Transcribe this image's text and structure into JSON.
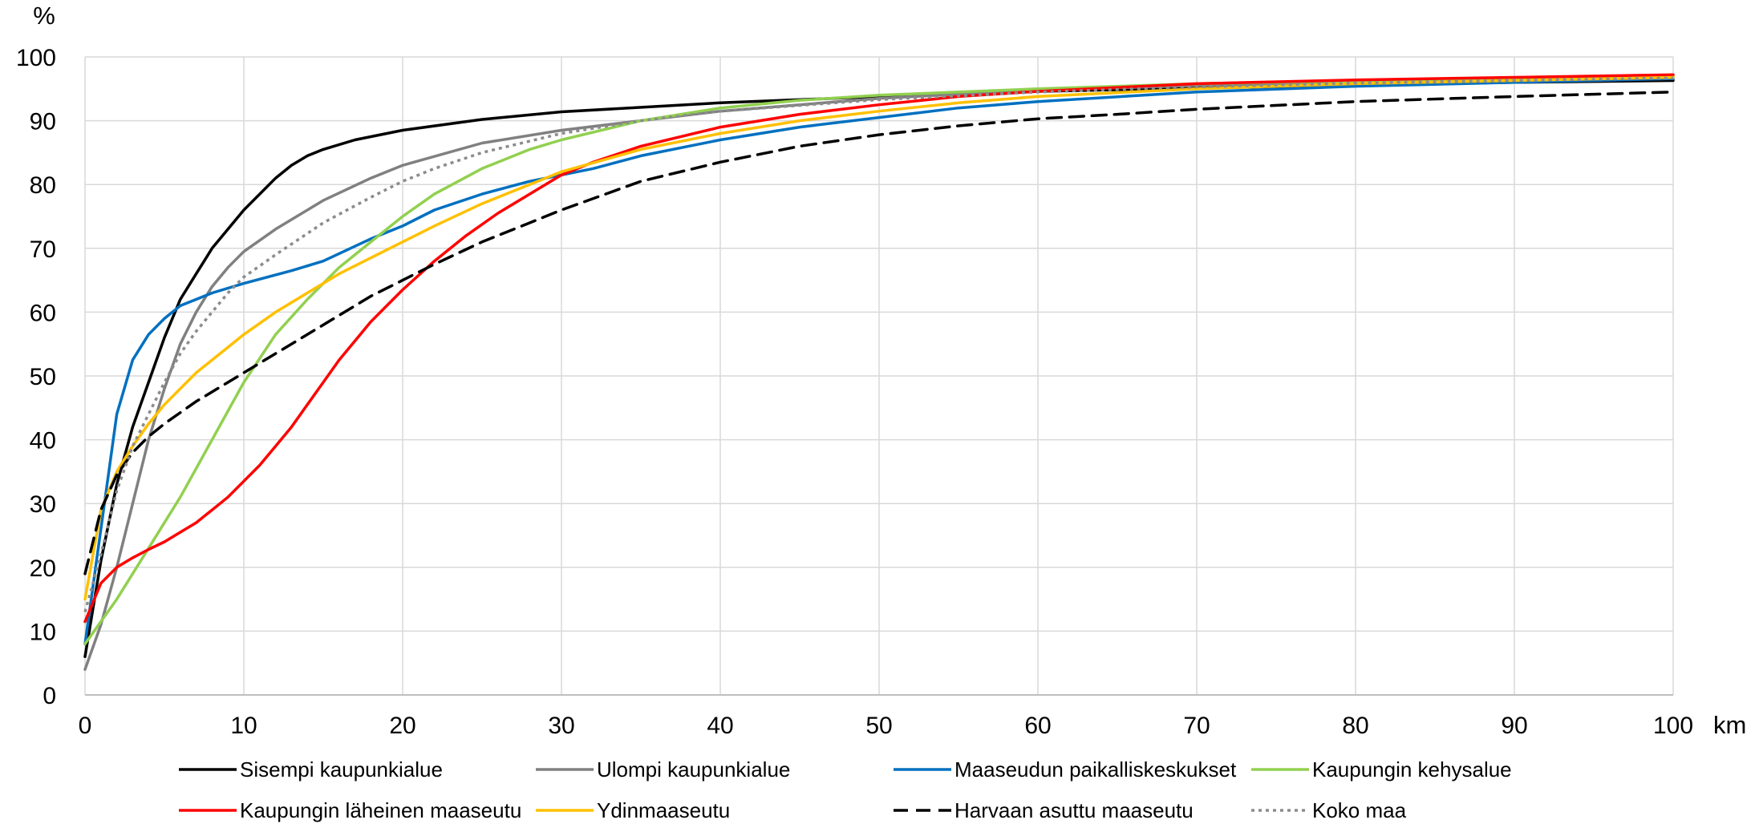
{
  "chart_data": {
    "type": "line",
    "title": "",
    "y_unit_label": "%",
    "x_unit_label": "km",
    "xlim": [
      0,
      100
    ],
    "ylim": [
      0,
      100
    ],
    "x_ticks": [
      0,
      10,
      20,
      30,
      40,
      50,
      60,
      70,
      80,
      90,
      100
    ],
    "y_ticks": [
      0,
      10,
      20,
      30,
      40,
      50,
      60,
      70,
      80,
      90,
      100
    ],
    "grid": true,
    "legend_position": "bottom",
    "series": [
      {
        "name": "Sisempi kaupunkialue",
        "color": "#000000",
        "style": "solid",
        "points": [
          [
            0,
            6
          ],
          [
            1,
            21
          ],
          [
            2,
            33
          ],
          [
            3,
            42
          ],
          [
            4,
            49
          ],
          [
            5,
            56
          ],
          [
            6,
            62
          ],
          [
            7,
            66
          ],
          [
            8,
            70
          ],
          [
            9,
            73
          ],
          [
            10,
            76
          ],
          [
            11,
            78.5
          ],
          [
            12,
            81
          ],
          [
            13,
            83
          ],
          [
            14,
            84.5
          ],
          [
            15,
            85.5
          ],
          [
            17,
            87
          ],
          [
            20,
            88.5
          ],
          [
            25,
            90.2
          ],
          [
            30,
            91.4
          ],
          [
            40,
            92.8
          ],
          [
            50,
            93.8
          ],
          [
            60,
            94.6
          ],
          [
            70,
            95.1
          ],
          [
            80,
            95.6
          ],
          [
            90,
            96
          ],
          [
            100,
            96.3
          ]
        ]
      },
      {
        "name": "Ulompi kaupunkialue",
        "color": "#808080",
        "style": "solid",
        "points": [
          [
            0,
            4
          ],
          [
            1,
            11
          ],
          [
            2,
            20
          ],
          [
            3,
            30
          ],
          [
            4,
            40
          ],
          [
            5,
            48
          ],
          [
            6,
            55
          ],
          [
            7,
            60
          ],
          [
            8,
            64
          ],
          [
            9,
            67
          ],
          [
            10,
            69.5
          ],
          [
            12,
            73
          ],
          [
            15,
            77.5
          ],
          [
            18,
            81
          ],
          [
            20,
            83
          ],
          [
            25,
            86.5
          ],
          [
            30,
            88.5
          ],
          [
            40,
            91.5
          ],
          [
            50,
            93.5
          ],
          [
            60,
            94.8
          ],
          [
            70,
            95.5
          ],
          [
            80,
            96
          ],
          [
            90,
            96.4
          ],
          [
            100,
            96.8
          ]
        ]
      },
      {
        "name": "Maaseudun paikalliskeskukset",
        "color": "#0070C0",
        "style": "solid",
        "points": [
          [
            0,
            8
          ],
          [
            1,
            26
          ],
          [
            2,
            44
          ],
          [
            3,
            52.5
          ],
          [
            4,
            56.5
          ],
          [
            5,
            59
          ],
          [
            6,
            61
          ],
          [
            7,
            62
          ],
          [
            8,
            63
          ],
          [
            10,
            64.5
          ],
          [
            13,
            66.5
          ],
          [
            15,
            68
          ],
          [
            18,
            71.5
          ],
          [
            20,
            73.5
          ],
          [
            22,
            76
          ],
          [
            25,
            78.5
          ],
          [
            28,
            80.5
          ],
          [
            30,
            81.5
          ],
          [
            32,
            82.5
          ],
          [
            35,
            84.5
          ],
          [
            40,
            87
          ],
          [
            45,
            89
          ],
          [
            50,
            90.5
          ],
          [
            55,
            92
          ],
          [
            60,
            93
          ],
          [
            70,
            94.5
          ],
          [
            80,
            95.4
          ],
          [
            90,
            96
          ],
          [
            100,
            96.6
          ]
        ]
      },
      {
        "name": "Kaupungin kehysalue",
        "color": "#92D050",
        "style": "solid",
        "points": [
          [
            0,
            8
          ],
          [
            2,
            15
          ],
          [
            4,
            23
          ],
          [
            6,
            31
          ],
          [
            8,
            40
          ],
          [
            10,
            49
          ],
          [
            12,
            56.5
          ],
          [
            14,
            62
          ],
          [
            16,
            67
          ],
          [
            18,
            71
          ],
          [
            20,
            75
          ],
          [
            22,
            78.5
          ],
          [
            25,
            82.5
          ],
          [
            28,
            85.5
          ],
          [
            30,
            87
          ],
          [
            35,
            90
          ],
          [
            40,
            92
          ],
          [
            45,
            93.2
          ],
          [
            50,
            94
          ],
          [
            55,
            94.5
          ],
          [
            60,
            95
          ],
          [
            70,
            95.8
          ],
          [
            80,
            96.2
          ],
          [
            90,
            96.6
          ],
          [
            100,
            97
          ]
        ]
      },
      {
        "name": "Kaupungin läheinen maaseutu",
        "color": "#FF0000",
        "style": "solid",
        "points": [
          [
            0,
            11.5
          ],
          [
            1,
            17.5
          ],
          [
            2,
            20
          ],
          [
            3,
            21.5
          ],
          [
            4,
            22.8
          ],
          [
            5,
            24
          ],
          [
            6,
            25.5
          ],
          [
            7,
            27
          ],
          [
            8,
            29
          ],
          [
            9,
            31
          ],
          [
            10,
            33.5
          ],
          [
            11,
            36
          ],
          [
            12,
            39
          ],
          [
            13,
            42
          ],
          [
            14,
            45.5
          ],
          [
            15,
            49
          ],
          [
            16,
            52.5
          ],
          [
            17,
            55.5
          ],
          [
            18,
            58.5
          ],
          [
            19,
            61
          ],
          [
            20,
            63.5
          ],
          [
            22,
            68
          ],
          [
            24,
            72
          ],
          [
            26,
            75.5
          ],
          [
            28,
            78.5
          ],
          [
            30,
            81.5
          ],
          [
            32,
            83.5
          ],
          [
            35,
            86
          ],
          [
            40,
            89
          ],
          [
            45,
            91
          ],
          [
            50,
            92.5
          ],
          [
            55,
            93.8
          ],
          [
            60,
            94.6
          ],
          [
            70,
            95.8
          ],
          [
            80,
            96.4
          ],
          [
            90,
            96.8
          ],
          [
            100,
            97.2
          ]
        ]
      },
      {
        "name": "Ydinmaaseutu",
        "color": "#FFC000",
        "style": "solid",
        "points": [
          [
            0,
            15
          ],
          [
            1,
            29
          ],
          [
            2,
            35
          ],
          [
            3,
            39
          ],
          [
            4,
            42.5
          ],
          [
            5,
            45.5
          ],
          [
            6,
            48
          ],
          [
            7,
            50.5
          ],
          [
            8,
            52.5
          ],
          [
            9,
            54.5
          ],
          [
            10,
            56.5
          ],
          [
            12,
            60
          ],
          [
            14,
            63
          ],
          [
            16,
            66
          ],
          [
            18,
            68.5
          ],
          [
            20,
            71
          ],
          [
            22,
            73.5
          ],
          [
            25,
            77
          ],
          [
            28,
            80
          ],
          [
            30,
            82
          ],
          [
            35,
            85.5
          ],
          [
            40,
            88
          ],
          [
            45,
            90
          ],
          [
            50,
            91.5
          ],
          [
            55,
            92.8
          ],
          [
            60,
            93.8
          ],
          [
            70,
            95
          ],
          [
            80,
            95.8
          ],
          [
            90,
            96.3
          ],
          [
            100,
            96.8
          ]
        ]
      },
      {
        "name": "Harvaan asuttu maaseutu",
        "color": "#000000",
        "style": "dashed",
        "points": [
          [
            0,
            19
          ],
          [
            1,
            29
          ],
          [
            2,
            34.5
          ],
          [
            3,
            38
          ],
          [
            4,
            40.5
          ],
          [
            5,
            42.5
          ],
          [
            7,
            46
          ],
          [
            9,
            49
          ],
          [
            10,
            50.5
          ],
          [
            12,
            53.5
          ],
          [
            14,
            56.5
          ],
          [
            16,
            59.5
          ],
          [
            18,
            62.5
          ],
          [
            20,
            65
          ],
          [
            22,
            67.5
          ],
          [
            25,
            71
          ],
          [
            28,
            74
          ],
          [
            30,
            76
          ],
          [
            35,
            80.5
          ],
          [
            40,
            83.5
          ],
          [
            45,
            86
          ],
          [
            50,
            87.8
          ],
          [
            55,
            89.2
          ],
          [
            60,
            90.3
          ],
          [
            65,
            91
          ],
          [
            70,
            91.8
          ],
          [
            80,
            93
          ],
          [
            90,
            93.8
          ],
          [
            100,
            94.5
          ]
        ]
      },
      {
        "name": "Koko maa",
        "color": "#8C8C8C",
        "style": "dotted",
        "points": [
          [
            0,
            13
          ],
          [
            1,
            22
          ],
          [
            2,
            32
          ],
          [
            3,
            39
          ],
          [
            4,
            44
          ],
          [
            5,
            49
          ],
          [
            6,
            53.5
          ],
          [
            7,
            57
          ],
          [
            8,
            60
          ],
          [
            9,
            63
          ],
          [
            10,
            65.5
          ],
          [
            12,
            69
          ],
          [
            15,
            74
          ],
          [
            18,
            78
          ],
          [
            20,
            80.5
          ],
          [
            22,
            82.5
          ],
          [
            25,
            85
          ],
          [
            30,
            88
          ],
          [
            35,
            90
          ],
          [
            40,
            91.5
          ],
          [
            50,
            93.3
          ],
          [
            60,
            94.5
          ],
          [
            70,
            95.3
          ],
          [
            80,
            95.9
          ],
          [
            90,
            96.3
          ],
          [
            100,
            96.7
          ]
        ]
      }
    ]
  }
}
